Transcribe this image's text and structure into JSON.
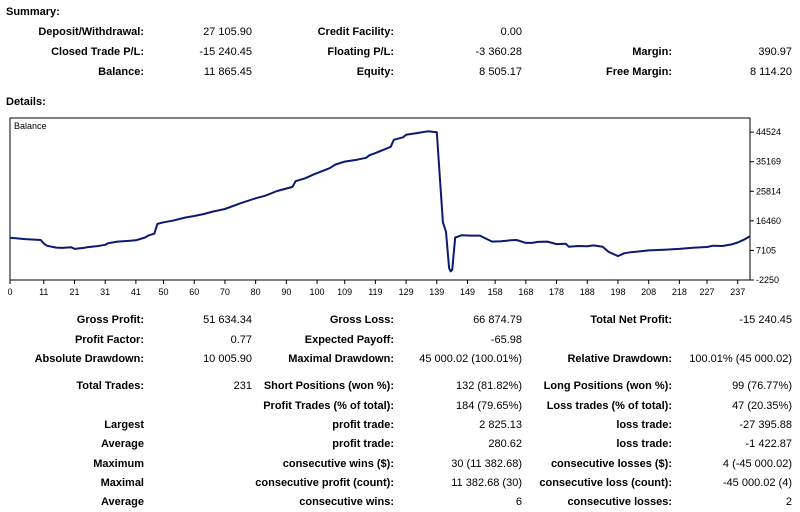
{
  "summary": {
    "title": "Summary:",
    "deposit_label": "Deposit/Withdrawal:",
    "deposit": "27 105.90",
    "credit_label": "Credit Facility:",
    "credit": "0.00",
    "closed_label": "Closed Trade P/L:",
    "closed": "-15 240.45",
    "floating_label": "Floating P/L:",
    "floating": "-3 360.28",
    "margin_label": "Margin:",
    "margin": "390.97",
    "balance_label": "Balance:",
    "balance": "11 865.45",
    "equity_label": "Equity:",
    "equity": "8 505.17",
    "free_margin_label": "Free Margin:",
    "free_margin": "8 114.20"
  },
  "details": {
    "title": "Details:",
    "gross_profit_label": "Gross Profit:",
    "gross_profit": "51 634.34",
    "gross_loss_label": "Gross Loss:",
    "gross_loss": "66 874.79",
    "total_net_profit_label": "Total Net Profit:",
    "total_net_profit": "-15 240.45",
    "profit_factor_label": "Profit Factor:",
    "profit_factor": "0.77",
    "expected_payoff_label": "Expected Payoff:",
    "expected_payoff": "-65.98",
    "absolute_drawdown_label": "Absolute Drawdown:",
    "absolute_drawdown": "10 005.90",
    "maximal_drawdown_label": "Maximal Drawdown:",
    "maximal_drawdown": "45 000.02 (100.01%)",
    "relative_drawdown_label": "Relative Drawdown:",
    "relative_drawdown": "100.01% (45 000.02)",
    "total_trades_label": "Total Trades:",
    "total_trades": "231",
    "short_positions_label": "Short Positions (won %):",
    "short_positions": "132 (81.82%)",
    "long_positions_label": "Long Positions (won %):",
    "long_positions": "99 (76.77%)",
    "profit_trades_label": "Profit Trades (% of total):",
    "profit_trades": "184 (79.65%)",
    "loss_trades_label": "Loss trades (% of total):",
    "loss_trades": "47 (20.35%)",
    "largest_label": "Largest",
    "largest_profit_label": "profit trade:",
    "largest_profit": "2 825.13",
    "largest_loss_label": "loss trade:",
    "largest_loss": "-27 395.88",
    "average_label": "Average",
    "average_profit_label": "profit trade:",
    "average_profit": "280.62",
    "average_loss_label": "loss trade:",
    "average_loss": "-1 422.87",
    "maximum_label": "Maximum",
    "max_cons_wins_label": "consecutive wins ($):",
    "max_cons_wins": "30 (11 382.68)",
    "max_cons_losses_label": "consecutive losses ($):",
    "max_cons_losses": "4 (-45 000.02)",
    "maximal_label": "Maximal",
    "maximal_cons_profit_label": "consecutive profit (count):",
    "maximal_cons_profit": "11 382.68 (30)",
    "maximal_cons_loss_label": "consecutive loss (count):",
    "maximal_cons_loss": "-45 000.02 (4)",
    "average2_label": "Average",
    "avg_cons_wins_label": "consecutive wins:",
    "avg_cons_wins": "6",
    "avg_cons_losses_label": "consecutive losses:",
    "avg_cons_losses": "2"
  },
  "chart_data": {
    "type": "line",
    "title": "Balance",
    "xlabel": "",
    "ylabel": "",
    "xlim": [
      0,
      241
    ],
    "ylim": [
      -2250,
      49000
    ],
    "x_ticks": [
      0,
      11,
      21,
      31,
      41,
      50,
      60,
      70,
      80,
      90,
      100,
      109,
      119,
      129,
      139,
      149,
      158,
      168,
      178,
      188,
      198,
      208,
      218,
      227,
      237
    ],
    "y_ticks": [
      44524,
      35169,
      25814,
      16460,
      7105,
      -2250
    ],
    "line_color": "#0a1a6e",
    "series": [
      {
        "name": "Balance",
        "x": [
          0,
          5,
          10,
          11,
          12,
          15,
          17,
          20,
          21,
          24,
          25,
          28,
          31,
          32,
          35,
          38,
          41,
          44,
          45,
          47,
          48,
          50,
          53,
          57,
          60,
          63,
          66,
          70,
          75,
          80,
          83,
          87,
          92,
          93,
          96,
          99,
          104,
          106,
          109,
          113,
          116,
          117,
          119,
          124,
          125,
          128,
          129,
          133,
          136,
          139,
          140,
          141,
          142,
          143,
          143.5,
          144,
          145,
          146,
          147,
          150,
          153,
          157,
          160,
          163,
          165,
          168,
          170,
          172,
          175,
          178,
          181,
          182,
          185,
          188,
          190,
          193,
          195,
          198,
          200,
          202,
          205,
          208,
          213,
          218,
          223,
          227,
          229,
          232,
          235,
          237,
          239,
          241
        ],
        "y": [
          11100,
          10700,
          10400,
          9300,
          8600,
          8000,
          7900,
          8100,
          7600,
          7900,
          8100,
          8400,
          8900,
          9400,
          9900,
          10100,
          10300,
          11200,
          11800,
          12400,
          15500,
          16000,
          16500,
          17500,
          18000,
          18600,
          19400,
          20200,
          22000,
          23600,
          24400,
          25900,
          27200,
          29000,
          29900,
          31200,
          33100,
          34300,
          35200,
          35800,
          36400,
          37200,
          37900,
          39900,
          42100,
          42900,
          43700,
          44300,
          44800,
          44500,
          30000,
          16000,
          13000,
          1500,
          500,
          900,
          11200,
          11500,
          11900,
          11800,
          11800,
          9900,
          10000,
          10300,
          10400,
          9500,
          9500,
          9800,
          9900,
          9100,
          9200,
          8300,
          8500,
          8400,
          8700,
          8300,
          6600,
          5300,
          6200,
          6500,
          6800,
          7100,
          7300,
          7600,
          8000,
          8200,
          8600,
          8500,
          9000,
          9600,
          10500,
          11600
        ]
      }
    ]
  }
}
